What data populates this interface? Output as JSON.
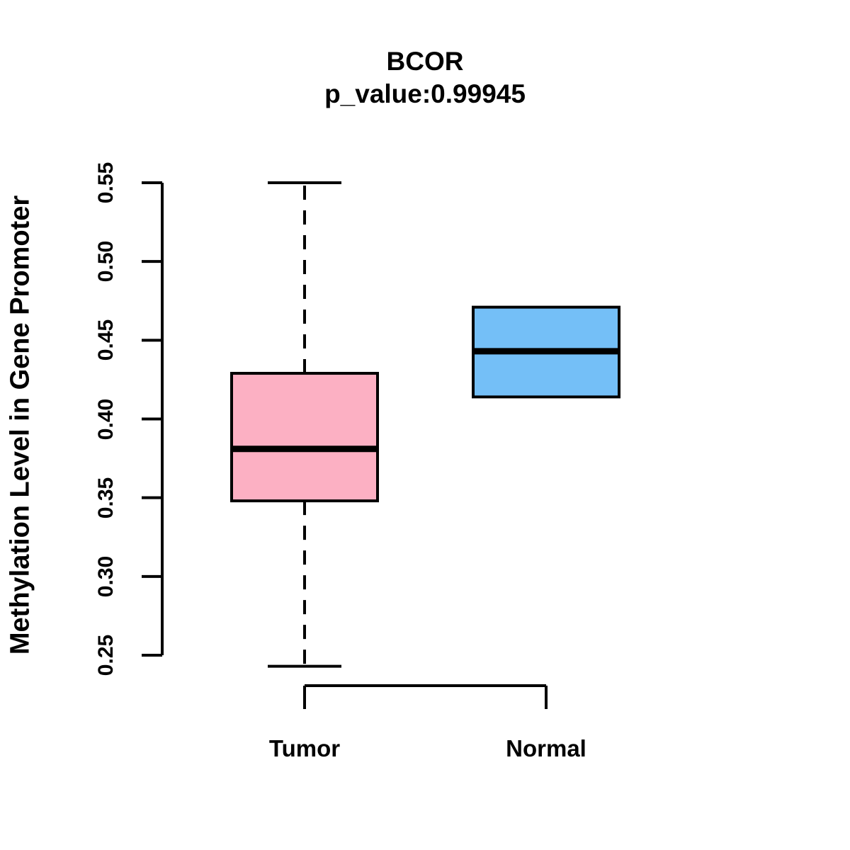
{
  "chart_data": {
    "type": "boxplot",
    "title": "BCOR",
    "subtitle": "p_value:0.99945",
    "ylabel": "Methylation Level in Gene Promoter",
    "xlabel": "",
    "categories": [
      "Tumor",
      "Normal"
    ],
    "ylim": [
      0.25,
      0.55
    ],
    "yticks": [
      0.25,
      0.3,
      0.35,
      0.4,
      0.45,
      0.5,
      0.55
    ],
    "ytick_labels": [
      "0.25",
      "0.30",
      "0.35",
      "0.40",
      "0.45",
      "0.50",
      "0.55"
    ],
    "grid": false,
    "legend": "none",
    "series": [
      {
        "name": "Tumor",
        "whisker_low": 0.243,
        "q1": 0.348,
        "median": 0.381,
        "q3": 0.429,
        "whisker_high": 0.55,
        "fill_color": "#FCB0C3"
      },
      {
        "name": "Normal",
        "whisker_low": 0.414,
        "q1": 0.414,
        "median": 0.443,
        "q3": 0.471,
        "whisker_high": 0.471,
        "fill_color": "#74BFF7"
      }
    ],
    "stroke_color": "#000000",
    "background_color": "#FFFFFF"
  }
}
